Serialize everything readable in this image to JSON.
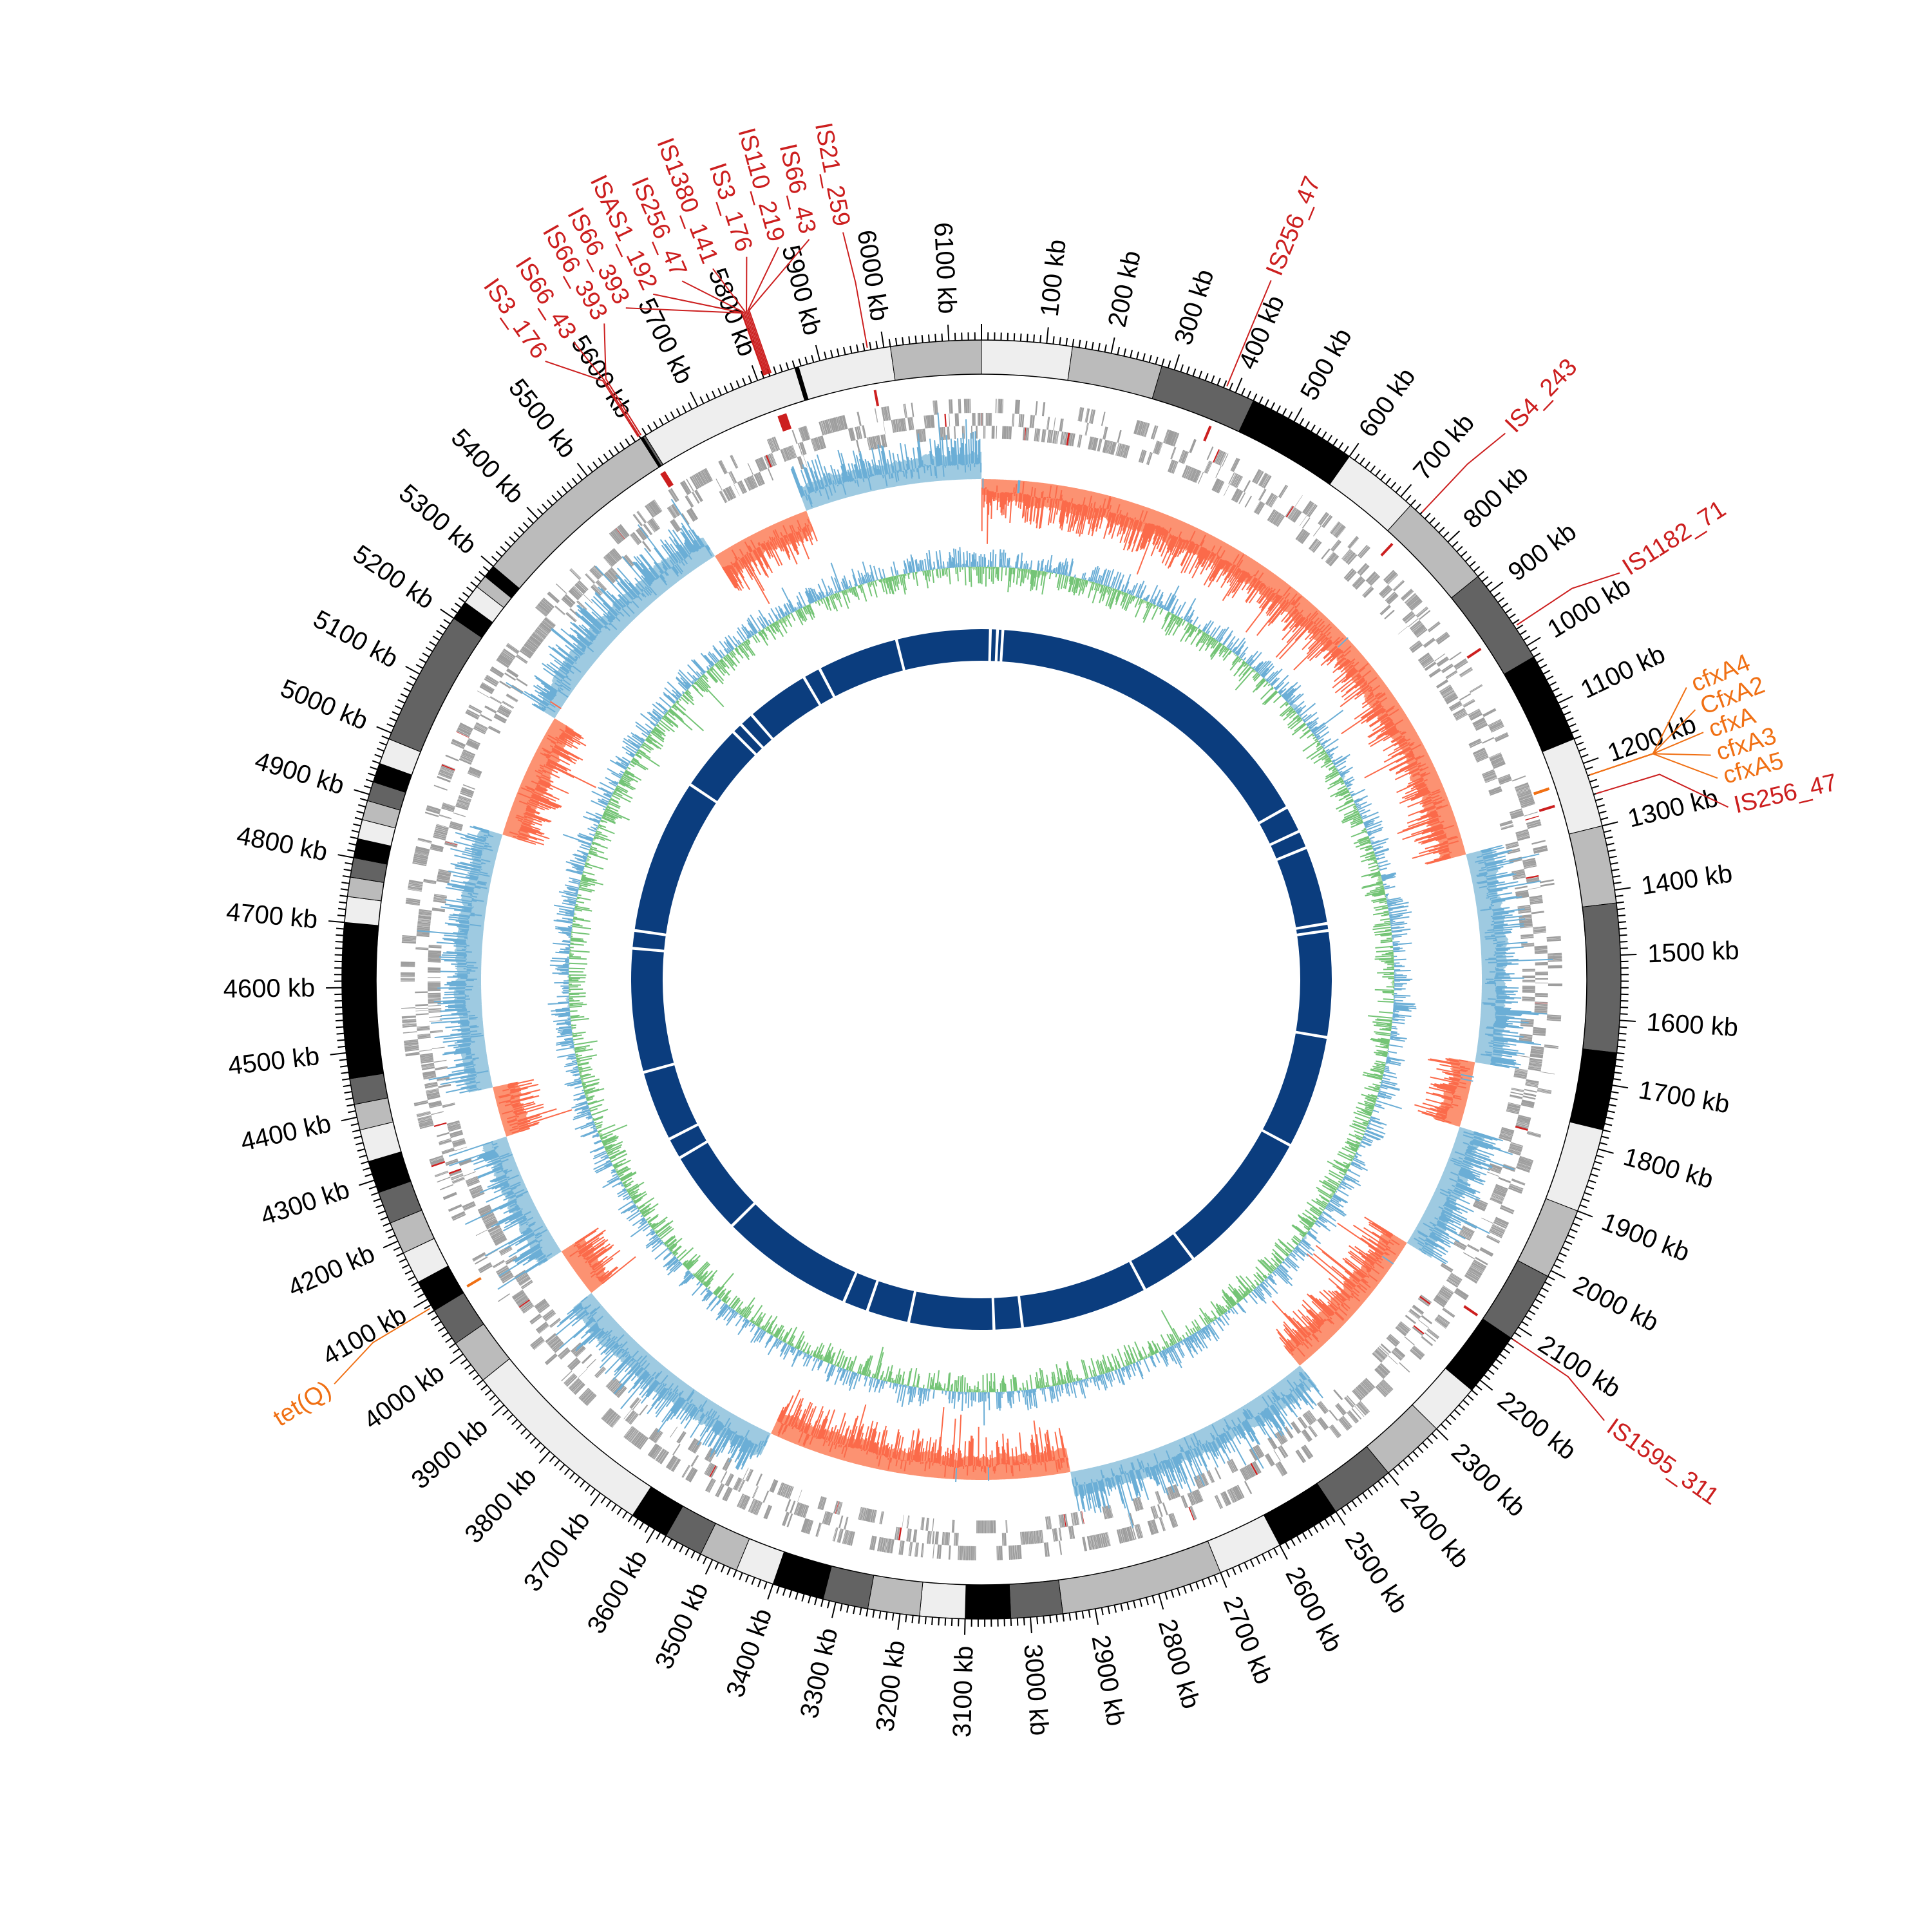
{
  "figure": {
    "genome_length_kb": 6150,
    "tick_labels": [
      "100 kb",
      "200 kb",
      "300 kb",
      "400 kb",
      "500 kb",
      "600 kb",
      "700 kb",
      "800 kb",
      "900 kb",
      "1000 kb",
      "1100 kb",
      "1200 kb",
      "1300 kb",
      "1400 kb",
      "1500 kb",
      "1600 kb",
      "1700 kb",
      "1800 kb",
      "1900 kb",
      "2000 kb",
      "2100 kb",
      "2200 kb",
      "2300 kb",
      "2400 kb",
      "2500 kb",
      "2600 kb",
      "2700 kb",
      "2800 kb",
      "2900 kb",
      "3000 kb",
      "3100 kb",
      "3200 kb",
      "3300 kb",
      "3400 kb",
      "3500 kb",
      "3600 kb",
      "3700 kb",
      "3800 kb",
      "3900 kb",
      "4000 kb",
      "4100 kb",
      "4200 kb",
      "4300 kb",
      "4400 kb",
      "4500 kb",
      "4600 kb",
      "4700 kb",
      "4800 kb",
      "4900 kb",
      "5000 kb",
      "5100 kb",
      "5200 kb",
      "5300 kb",
      "5400 kb",
      "5500 kb",
      "5600 kb",
      "5700 kb",
      "5800 kb",
      "5900 kb",
      "6000 kb",
      "6100 kb"
    ]
  },
  "colors": {
    "is_element": "#cc1f1f",
    "resistance_gene": "#f07014",
    "gene": "#9e9e9e",
    "skew_pos_line": "#6baed6",
    "skew_pos_fill": "#9ecae1",
    "skew_neg_line": "#fb6a4a",
    "skew_neg_fill": "#fc9272",
    "gc_high": "#6baed6",
    "gc_low": "#74c476",
    "synteny": "#0b3d7e"
  },
  "contigs": [
    [
      0,
      140,
      "#eeeeee"
    ],
    [
      140,
      280,
      "#bbbbbb"
    ],
    [
      280,
      430,
      "#636363"
    ],
    [
      430,
      600,
      "#000000"
    ],
    [
      600,
      720,
      "#eeeeee"
    ],
    [
      720,
      870,
      "#bbbbbb"
    ],
    [
      870,
      1020,
      "#636363"
    ],
    [
      1020,
      1160,
      "#000000"
    ],
    [
      1160,
      1300,
      "#eeeeee"
    ],
    [
      1300,
      1420,
      "#bbbbbb"
    ],
    [
      1420,
      1650,
      "#636363"
    ],
    [
      1650,
      1770,
      "#000000"
    ],
    [
      1770,
      1900,
      "#eeeeee"
    ],
    [
      1900,
      2010,
      "#bbbbbb"
    ],
    [
      2010,
      2120,
      "#636363"
    ],
    [
      2120,
      2220,
      "#000000"
    ],
    [
      2220,
      2300,
      "#eeeeee"
    ],
    [
      2300,
      2400,
      "#bbbbbb"
    ],
    [
      2400,
      2500,
      "#636363"
    ],
    [
      2500,
      2600,
      "#000000"
    ],
    [
      2600,
      2700,
      "#eeeeee"
    ],
    [
      2700,
      2950,
      "#bbbbbb"
    ],
    [
      2950,
      3030,
      "#636363"
    ],
    [
      3030,
      3100,
      "#000000"
    ],
    [
      3100,
      3170,
      "#eeeeee"
    ],
    [
      3170,
      3250,
      "#bbbbbb"
    ],
    [
      3250,
      3320,
      "#636363"
    ],
    [
      3320,
      3400,
      "#000000"
    ],
    [
      3400,
      3460,
      "#eeeeee"
    ],
    [
      3460,
      3520,
      "#bbbbbb"
    ],
    [
      3520,
      3580,
      "#636363"
    ],
    [
      3580,
      3640,
      "#000000"
    ],
    [
      3640,
      3950,
      "#eeeeee"
    ],
    [
      3950,
      4020,
      "#bbbbbb"
    ],
    [
      4020,
      4080,
      "#636363"
    ],
    [
      4080,
      4130,
      "#000000"
    ],
    [
      4130,
      4180,
      "#eeeeee"
    ],
    [
      4180,
      4230,
      "#bbbbbb"
    ],
    [
      4230,
      4280,
      "#636363"
    ],
    [
      4280,
      4330,
      "#000000"
    ],
    [
      4330,
      4380,
      "#eeeeee"
    ],
    [
      4380,
      4420,
      "#bbbbbb"
    ],
    [
      4420,
      4460,
      "#636363"
    ],
    [
      4460,
      4700,
      "#000000"
    ],
    [
      4700,
      4740,
      "#eeeeee"
    ],
    [
      4740,
      4770,
      "#bbbbbb"
    ],
    [
      4770,
      4800,
      "#636363"
    ],
    [
      4800,
      4830,
      "#000000"
    ],
    [
      4830,
      4860,
      "#eeeeee"
    ],
    [
      4860,
      4890,
      "#bbbbbb"
    ],
    [
      4890,
      4920,
      "#636363"
    ],
    [
      4920,
      4950,
      "#000000"
    ],
    [
      4950,
      4990,
      "#eeeeee"
    ],
    [
      4990,
      5200,
      "#636363"
    ],
    [
      5200,
      5230,
      "#000000"
    ],
    [
      5230,
      5260,
      "#eeeeee"
    ],
    [
      5260,
      5280,
      "#bbbbbb"
    ],
    [
      5280,
      5300,
      "#000000"
    ],
    [
      5300,
      5600,
      "#bbbbbb"
    ],
    [
      5600,
      5604,
      "#000000"
    ],
    [
      5604,
      5608,
      "#636363"
    ],
    [
      5608,
      5860,
      "#eeeeee"
    ],
    [
      5860,
      5866,
      "#000000"
    ],
    [
      5866,
      6010,
      "#eeeeee"
    ],
    [
      6010,
      6150,
      "#bbbbbb"
    ]
  ],
  "features": [
    {
      "name": "IS256_47",
      "kb": 384,
      "type": "IS"
    },
    {
      "name": "IS4_243",
      "kb": 740,
      "type": "IS"
    },
    {
      "name": "IS1182_71",
      "kb": 965,
      "type": "IS"
    },
    {
      "name": "cfxA4",
      "kb": 1220,
      "type": "ARG"
    },
    {
      "name": "CfxA2",
      "kb": 1220,
      "type": "ARG"
    },
    {
      "name": "cfxA",
      "kb": 1220,
      "type": "ARG"
    },
    {
      "name": "cfxA3",
      "kb": 1220,
      "type": "ARG"
    },
    {
      "name": "cfxA5",
      "kb": 1220,
      "type": "ARG"
    },
    {
      "name": "IS256_47",
      "kb": 1250,
      "type": "IS"
    },
    {
      "name": "IS1595_311",
      "kb": 2120,
      "type": "IS"
    },
    {
      "name": "tet(Q)",
      "kb": 4086,
      "type": "ARG"
    },
    {
      "name": "IS3_176",
      "kb": 5598,
      "type": "IS"
    },
    {
      "name": "IS66_43",
      "kb": 5600,
      "type": "IS"
    },
    {
      "name": "IS66_393",
      "kb": 5603,
      "type": "IS"
    },
    {
      "name": "IS66_393",
      "kb": 5812,
      "type": "IS"
    },
    {
      "name": "ISAS1_192",
      "kb": 5813,
      "type": "IS"
    },
    {
      "name": "IS256_47",
      "kb": 5815,
      "type": "IS"
    },
    {
      "name": "IS1380_141",
      "kb": 5817,
      "type": "IS"
    },
    {
      "name": "IS3_176",
      "kb": 5819,
      "type": "IS"
    },
    {
      "name": "IS110_219",
      "kb": 5821,
      "type": "IS"
    },
    {
      "name": "IS66_43",
      "kb": 5823,
      "type": "IS"
    },
    {
      "name": "IS21_259",
      "kb": 5975,
      "type": "IS"
    }
  ],
  "gc_skew_trend": [
    [
      0,
      1290,
      -1
    ],
    [
      1290,
      1700,
      1
    ],
    [
      1700,
      1830,
      -1
    ],
    [
      1830,
      2080,
      1
    ],
    [
      2080,
      2400,
      -1
    ],
    [
      2400,
      2900,
      1
    ],
    [
      2900,
      3500,
      -1
    ],
    [
      3500,
      3950,
      1
    ],
    [
      3950,
      4050,
      -1
    ],
    [
      4050,
      4300,
      1
    ],
    [
      4300,
      4400,
      -1
    ],
    [
      4400,
      4900,
      1
    ],
    [
      4900,
      5150,
      -1
    ],
    [
      5150,
      5600,
      1
    ],
    [
      5600,
      5800,
      -1
    ],
    [
      5800,
      6150,
      1
    ]
  ],
  "synteny_gaps_kb": [
    25,
    45,
    60,
    1035,
    1110,
    1160,
    1380,
    1400,
    1700,
    2020,
    2440,
    2600,
    2960,
    3040,
    3280,
    3400,
    3470,
    3850,
    4090,
    4150,
    4350,
    4700,
    4750,
    5190,
    5380,
    5410,
    5450,
    5630,
    5680,
    5910
  ]
}
